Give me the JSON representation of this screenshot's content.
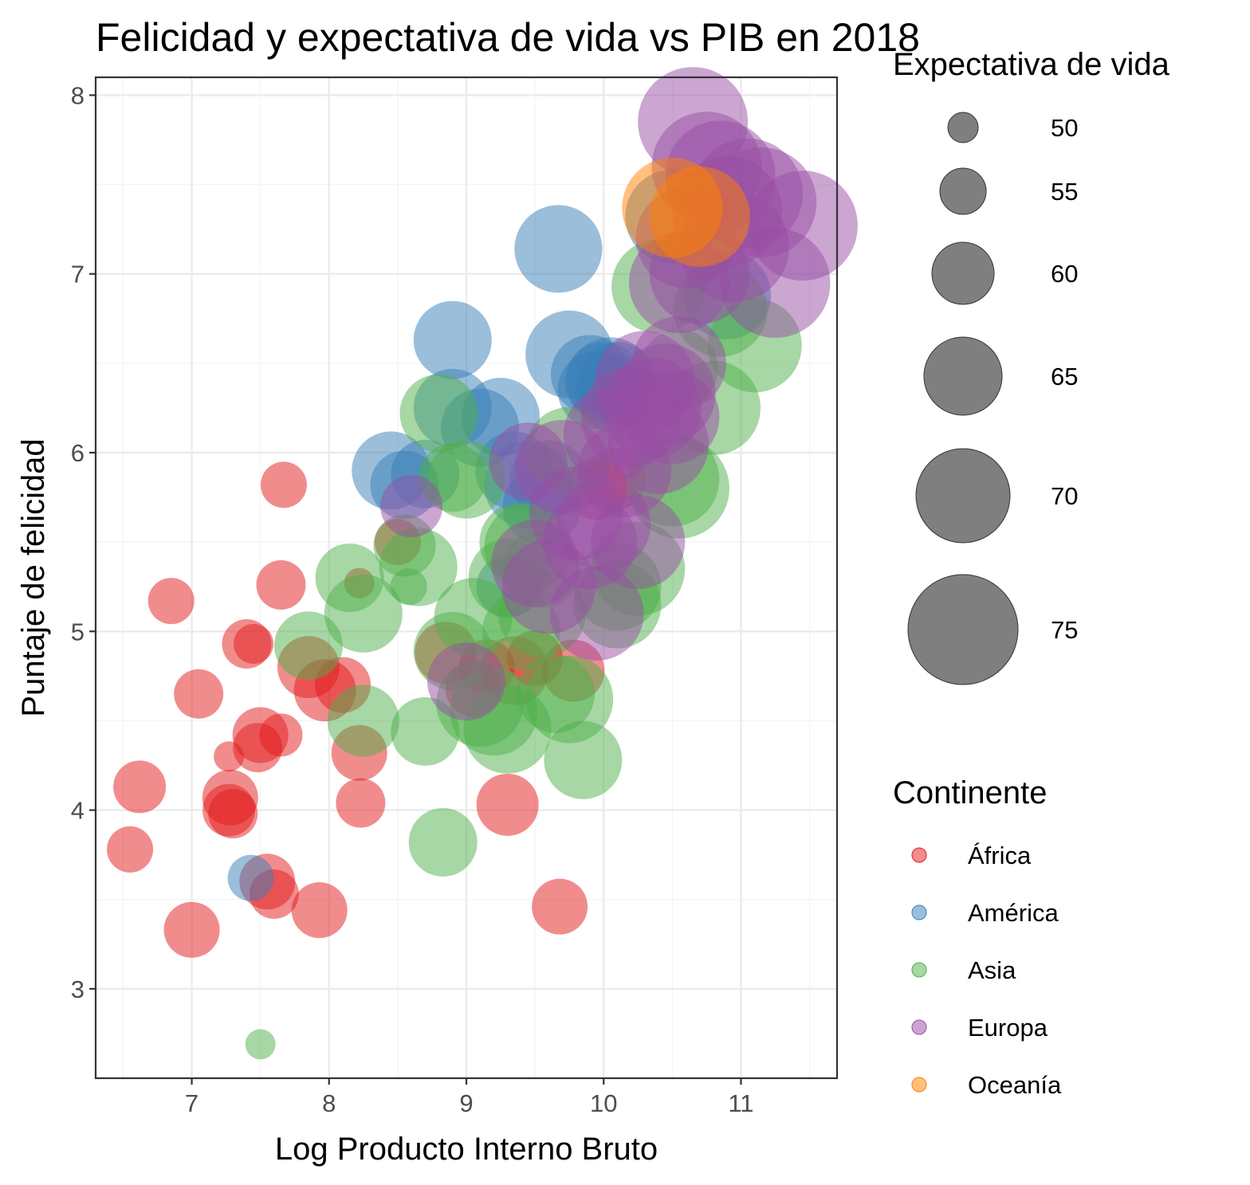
{
  "chart_data": {
    "type": "scatter",
    "title": "Felicidad y expectativa de vida vs PIB en 2018",
    "xlabel": "Log Producto Interno Bruto",
    "ylabel": "Puntaje de felicidad",
    "xlim": [
      6.3,
      11.7
    ],
    "ylim": [
      2.5,
      8.1
    ],
    "x_ticks": [
      "7",
      "8",
      "9",
      "10",
      "11"
    ],
    "y_ticks": [
      "3",
      "4",
      "5",
      "6",
      "7",
      "8"
    ],
    "grid": true,
    "size_legend": {
      "title": "Expectativa de vida",
      "values": [
        50,
        55,
        60,
        65,
        70,
        75
      ],
      "labels": [
        "50",
        "55",
        "60",
        "65",
        "70",
        "75"
      ],
      "color": "#000000"
    },
    "color_legend": {
      "title": "Continente",
      "entries": [
        {
          "label": "África",
          "color": "#E41A1C"
        },
        {
          "label": "América",
          "color": "#377EB8"
        },
        {
          "label": "Asia",
          "color": "#4DAF4A"
        },
        {
          "label": "Europa",
          "color": "#984EA3"
        },
        {
          "label": "Oceanía",
          "color": "#FF7F00"
        }
      ]
    },
    "series": [
      {
        "name": "África",
        "color": "#E41A1C",
        "points": [
          [
            6.55,
            3.78,
            55
          ],
          [
            6.62,
            4.13,
            57
          ],
          [
            6.85,
            5.17,
            55
          ],
          [
            7.0,
            3.33,
            58
          ],
          [
            7.05,
            4.65,
            56
          ],
          [
            7.27,
            4.3,
            50
          ],
          [
            7.28,
            4.07,
            58
          ],
          [
            7.27,
            4.0,
            57
          ],
          [
            7.3,
            3.98,
            56
          ],
          [
            7.4,
            4.93,
            56
          ],
          [
            7.45,
            4.93,
            53
          ],
          [
            7.48,
            4.35,
            56
          ],
          [
            7.5,
            4.42,
            58
          ],
          [
            7.55,
            3.6,
            58
          ],
          [
            7.6,
            3.53,
            56
          ],
          [
            7.65,
            4.42,
            54
          ],
          [
            7.65,
            5.26,
            56
          ],
          [
            7.67,
            5.82,
            55
          ],
          [
            7.85,
            4.8,
            60
          ],
          [
            7.93,
            3.44,
            58
          ],
          [
            7.97,
            4.67,
            60
          ],
          [
            8.1,
            4.7,
            58
          ],
          [
            8.22,
            4.32,
            58
          ],
          [
            8.23,
            4.04,
            56
          ],
          [
            8.22,
            5.27,
            50
          ],
          [
            8.5,
            5.5,
            55
          ],
          [
            8.85,
            4.88,
            60
          ],
          [
            9.05,
            4.68,
            58
          ],
          [
            9.15,
            4.8,
            58
          ],
          [
            9.3,
            4.03,
            60
          ],
          [
            9.35,
            4.78,
            62
          ],
          [
            9.5,
            4.85,
            58
          ],
          [
            9.68,
            3.46,
            58
          ],
          [
            9.78,
            4.78,
            60
          ],
          [
            9.95,
            5.8,
            60
          ],
          [
            10.08,
            5.85,
            60
          ]
        ]
      },
      {
        "name": "América",
        "color": "#377EB8",
        "points": [
          [
            7.43,
            3.62,
            55
          ],
          [
            8.45,
            5.9,
            65
          ],
          [
            8.55,
            5.82,
            62
          ],
          [
            8.7,
            5.88,
            62
          ],
          [
            8.9,
            6.63,
            65
          ],
          [
            8.9,
            6.25,
            65
          ],
          [
            9.1,
            6.14,
            65
          ],
          [
            9.25,
            6.2,
            65
          ],
          [
            9.3,
            5.25,
            60
          ],
          [
            9.35,
            5.9,
            65
          ],
          [
            9.45,
            5.82,
            68
          ],
          [
            9.55,
            5.7,
            65
          ],
          [
            9.6,
            5.85,
            65
          ],
          [
            9.67,
            7.14,
            68
          ],
          [
            9.75,
            6.55,
            68
          ],
          [
            9.9,
            6.44,
            65
          ],
          [
            9.95,
            6.35,
            65
          ],
          [
            10.0,
            6.4,
            65
          ],
          [
            10.05,
            6.4,
            68
          ],
          [
            10.08,
            6.33,
            65
          ],
          [
            10.1,
            6.4,
            65
          ],
          [
            10.9,
            6.88,
            68
          ],
          [
            10.5,
            7.32,
            70
          ]
        ]
      },
      {
        "name": "Asia",
        "color": "#4DAF4A",
        "points": [
          [
            7.5,
            2.69,
            50
          ],
          [
            7.85,
            4.92,
            62
          ],
          [
            8.15,
            5.3,
            62
          ],
          [
            8.25,
            5.1,
            65
          ],
          [
            8.25,
            4.5,
            63
          ],
          [
            8.58,
            5.25,
            52
          ],
          [
            8.55,
            5.48,
            60
          ],
          [
            8.65,
            5.36,
            65
          ],
          [
            8.7,
            4.44,
            62
          ],
          [
            8.8,
            6.22,
            65
          ],
          [
            8.83,
            3.82,
            62
          ],
          [
            8.9,
            5.86,
            62
          ],
          [
            8.9,
            4.89,
            65
          ],
          [
            9.0,
            5.85,
            65
          ],
          [
            9.05,
            5.08,
            65
          ],
          [
            9.1,
            4.6,
            68
          ],
          [
            9.2,
            4.55,
            68
          ],
          [
            9.3,
            4.45,
            68
          ],
          [
            9.3,
            5.3,
            65
          ],
          [
            9.38,
            5.5,
            65
          ],
          [
            9.4,
            5.0,
            65
          ],
          [
            9.45,
            5.47,
            68
          ],
          [
            9.55,
            5.1,
            68
          ],
          [
            9.55,
            5.35,
            65
          ],
          [
            9.65,
            4.65,
            65
          ],
          [
            9.75,
            4.62,
            68
          ],
          [
            9.75,
            6.01,
            68
          ],
          [
            9.85,
            4.28,
            65
          ],
          [
            10.1,
            5.15,
            68
          ],
          [
            10.1,
            5.25,
            68
          ],
          [
            10.25,
            5.35,
            70
          ],
          [
            10.4,
            6.93,
            70
          ],
          [
            10.5,
            5.85,
            70
          ],
          [
            10.55,
            5.8,
            72
          ],
          [
            10.55,
            6.47,
            65
          ],
          [
            10.8,
            6.25,
            70
          ],
          [
            10.85,
            6.8,
            70
          ],
          [
            11.1,
            6.6,
            70
          ]
        ]
      },
      {
        "name": "Europa",
        "color": "#984EA3",
        "points": [
          [
            8.6,
            5.7,
            60
          ],
          [
            9.0,
            4.72,
            65
          ],
          [
            9.45,
            5.95,
            65
          ],
          [
            9.5,
            5.38,
            68
          ],
          [
            9.6,
            5.25,
            70
          ],
          [
            9.7,
            5.92,
            70
          ],
          [
            9.8,
            5.66,
            70
          ],
          [
            9.9,
            5.5,
            70
          ],
          [
            9.95,
            5.1,
            70
          ],
          [
            10.0,
            5.6,
            70
          ],
          [
            10.05,
            6.1,
            70
          ],
          [
            10.15,
            5.9,
            70
          ],
          [
            10.2,
            6.2,
            72
          ],
          [
            10.25,
            5.5,
            70
          ],
          [
            10.35,
            6.25,
            72
          ],
          [
            10.4,
            6.05,
            72
          ],
          [
            10.45,
            6.33,
            72
          ],
          [
            10.55,
            6.5,
            70
          ],
          [
            10.65,
            7.85,
            75
          ],
          [
            10.75,
            7.6,
            75
          ],
          [
            10.85,
            7.55,
            75
          ],
          [
            10.9,
            7.35,
            75
          ],
          [
            10.95,
            7.15,
            75
          ],
          [
            11.05,
            7.45,
            75
          ],
          [
            11.15,
            7.4,
            75
          ],
          [
            11.25,
            6.95,
            75
          ],
          [
            11.45,
            7.27,
            75
          ],
          [
            10.6,
            7.2,
            72
          ],
          [
            10.7,
            7.0,
            72
          ],
          [
            10.55,
            6.95,
            72
          ],
          [
            10.3,
            6.4,
            72
          ],
          [
            10.5,
            6.2,
            70
          ]
        ]
      },
      {
        "name": "Oceanía",
        "color": "#FF7F00",
        "points": [
          [
            10.5,
            7.37,
            72
          ],
          [
            10.7,
            7.32,
            72
          ]
        ]
      }
    ]
  }
}
